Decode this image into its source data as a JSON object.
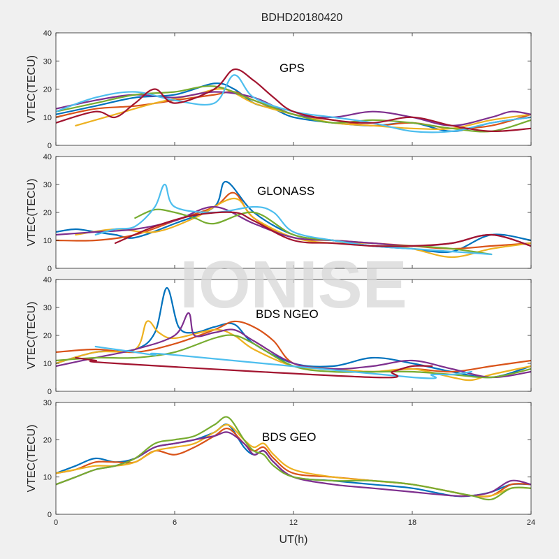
{
  "figure": {
    "title": "BDHD20180420",
    "watermark": "IONISE",
    "xlabel": "UT(h)",
    "xlim": [
      0,
      24
    ],
    "xticks": [
      0,
      6,
      12,
      18,
      24
    ],
    "background": "#f0f0f0"
  },
  "chart_data": [
    {
      "type": "line",
      "title": "GPS",
      "ylabel": "VTEC(TECU)",
      "xlabel": "",
      "ylim": [
        0,
        40
      ],
      "yticks": [
        0,
        10,
        20,
        30,
        40
      ],
      "series": [
        {
          "color": "#0072bd",
          "x": [
            0,
            2,
            4,
            6,
            8,
            9,
            10,
            11,
            12,
            14,
            16,
            18,
            20,
            22,
            24
          ],
          "y": [
            11,
            14,
            17,
            18,
            22,
            20,
            15,
            13,
            10,
            8,
            7,
            8,
            5,
            8,
            10
          ]
        },
        {
          "color": "#d95319",
          "x": [
            0,
            2,
            4,
            6,
            8,
            9,
            10,
            12,
            14,
            16,
            18,
            20,
            22,
            24
          ],
          "y": [
            10,
            13,
            14,
            16,
            18,
            19,
            16,
            11,
            9,
            7,
            8,
            6,
            7,
            11
          ]
        },
        {
          "color": "#edb120",
          "x": [
            1,
            3,
            5,
            7,
            8.5,
            10,
            12,
            14,
            16,
            18,
            20,
            22,
            24
          ],
          "y": [
            7,
            11,
            15,
            18,
            20,
            15,
            11,
            8,
            7,
            6,
            6,
            9,
            11
          ]
        },
        {
          "color": "#7e2f8e",
          "x": [
            0,
            2,
            4,
            6,
            8,
            10,
            12,
            14,
            16,
            18,
            20,
            22,
            23,
            24
          ],
          "y": [
            13,
            16,
            18,
            17,
            19,
            17,
            11,
            10,
            12,
            10,
            7,
            10,
            12,
            11
          ]
        },
        {
          "color": "#77ac30",
          "x": [
            0,
            2,
            4,
            6,
            8,
            10,
            12,
            14,
            16,
            18,
            20,
            22,
            24
          ],
          "y": [
            12,
            15,
            18,
            19,
            21,
            16,
            11,
            8,
            9,
            8,
            6,
            5,
            9
          ]
        },
        {
          "color": "#4dbeee",
          "x": [
            0,
            2,
            4,
            6,
            8,
            9,
            10,
            12,
            14,
            16,
            18,
            20,
            22,
            24
          ],
          "y": [
            12,
            17,
            19,
            16,
            15,
            25,
            17,
            12,
            10,
            8,
            5,
            5,
            8,
            10
          ]
        },
        {
          "color": "#a2142f",
          "x": [
            0,
            2,
            3,
            4,
            5,
            6,
            8,
            9,
            10,
            11,
            12,
            14,
            16,
            18,
            20,
            22,
            24
          ],
          "y": [
            8,
            12,
            10,
            15,
            20,
            15,
            20,
            27,
            23,
            17,
            12,
            9,
            8,
            10,
            7,
            5,
            6
          ]
        }
      ]
    },
    {
      "type": "line",
      "title": "GLONASS",
      "ylabel": "VTEC(TECU)",
      "xlabel": "",
      "ylim": [
        0,
        40
      ],
      "yticks": [
        0,
        10,
        20,
        30,
        40
      ],
      "series": [
        {
          "color": "#0072bd",
          "x": [
            0,
            1,
            2,
            3,
            4,
            6,
            8,
            8.6,
            10,
            12,
            14,
            16,
            18,
            20,
            22,
            24
          ],
          "y": [
            13,
            14,
            13,
            12,
            11,
            16,
            22,
            31,
            20,
            12,
            10,
            8,
            7,
            6,
            12,
            10
          ]
        },
        {
          "color": "#d95319",
          "x": [
            0,
            2,
            4,
            6,
            8,
            9,
            10,
            12,
            14,
            16,
            18,
            20,
            22,
            24
          ],
          "y": [
            10,
            10,
            12,
            17,
            22,
            27,
            18,
            11,
            10,
            9,
            8,
            7,
            8,
            9
          ]
        },
        {
          "color": "#edb120",
          "x": [
            1,
            3,
            5,
            7,
            9,
            10,
            12,
            14,
            16,
            18,
            20,
            22,
            24
          ],
          "y": [
            12,
            14,
            13,
            18,
            25,
            18,
            11,
            9,
            9,
            7,
            4,
            7,
            9
          ]
        },
        {
          "color": "#7e2f8e",
          "x": [
            0,
            2,
            4,
            6,
            8,
            10,
            12,
            14,
            16,
            18,
            20,
            22,
            24
          ],
          "y": [
            12,
            13,
            14,
            17,
            22,
            16,
            11,
            10,
            9,
            8,
            9,
            12,
            8
          ]
        },
        {
          "color": "#77ac30",
          "x": [
            4,
            5,
            6,
            7,
            8,
            10,
            12,
            14,
            16,
            18,
            20,
            22
          ],
          "y": [
            18,
            21,
            20,
            18,
            16,
            20,
            12,
            10,
            8,
            8,
            7,
            5
          ]
        },
        {
          "color": "#4dbeee",
          "x": [
            2,
            3,
            4,
            5,
            5.5,
            6,
            8,
            10,
            11,
            12,
            14,
            16,
            18,
            20,
            22
          ],
          "y": [
            12,
            14,
            15,
            22,
            30,
            22,
            20,
            22,
            20,
            13,
            10,
            8,
            7,
            6,
            5
          ]
        },
        {
          "color": "#a2142f",
          "x": [
            3,
            5,
            7,
            9,
            10,
            12,
            14,
            16,
            18,
            20,
            22,
            24
          ],
          "y": [
            9,
            15,
            19,
            20,
            17,
            10,
            9,
            8,
            8,
            9,
            12,
            8
          ]
        }
      ]
    },
    {
      "type": "line",
      "title": "BDS NGEO",
      "ylabel": "VTEC(TECU)",
      "xlabel": "",
      "ylim": [
        0,
        40
      ],
      "yticks": [
        0,
        10,
        20,
        30,
        40
      ],
      "series": [
        {
          "color": "#0072bd",
          "x": [
            0,
            2,
            4,
            5,
            5.6,
            6.2,
            7,
            8,
            9,
            10,
            12,
            14,
            16,
            18,
            20,
            22,
            24
          ],
          "y": [
            10,
            14,
            15,
            21,
            37,
            23,
            21,
            23,
            24,
            17,
            10,
            9,
            12,
            10,
            7,
            5,
            9
          ]
        },
        {
          "color": "#d95319",
          "x": [
            0,
            2,
            4,
            6,
            8,
            9,
            10,
            11,
            12,
            14,
            16,
            18,
            20,
            22,
            24
          ],
          "y": [
            14,
            15,
            14,
            17,
            22,
            25,
            23,
            18,
            10,
            8,
            7,
            8,
            7,
            9,
            11
          ]
        },
        {
          "color": "#edb120",
          "x": [
            0,
            2,
            4,
            4.6,
            5.2,
            6,
            8,
            9,
            10,
            12,
            14,
            16,
            18,
            20,
            21,
            22,
            24
          ],
          "y": [
            10,
            14,
            15,
            25,
            21,
            19,
            22,
            20,
            15,
            9,
            8,
            7,
            8,
            5,
            4,
            6,
            9
          ]
        },
        {
          "color": "#7e2f8e",
          "x": [
            0,
            2,
            4,
            6,
            6.7,
            7,
            8,
            9,
            10,
            12,
            14,
            16,
            18,
            20,
            22,
            24
          ],
          "y": [
            9,
            12,
            15,
            20,
            28,
            20,
            21,
            22,
            18,
            10,
            8,
            9,
            11,
            8,
            5,
            7
          ]
        },
        {
          "color": "#77ac30",
          "x": [
            0,
            2,
            4,
            6,
            8,
            9,
            10,
            12,
            14,
            16,
            18,
            20,
            22,
            24
          ],
          "y": [
            11,
            12,
            12,
            14,
            19,
            20,
            17,
            9,
            7,
            7,
            7,
            6,
            5,
            8
          ]
        },
        {
          "color": "#4dbeee",
          "x": [
            2,
            3,
            4,
            5,
            6,
            18,
            19,
            20,
            21
          ],
          "y": [
            16,
            15,
            14,
            13,
            13,
            5,
            6,
            6,
            7
          ]
        },
        {
          "color": "#a2142f",
          "x": [
            1,
            2,
            3,
            16,
            17,
            18,
            19
          ],
          "y": [
            12,
            11,
            10,
            5,
            7,
            9,
            9
          ]
        }
      ]
    },
    {
      "type": "line",
      "title": "BDS GEO",
      "ylabel": "VTEC(TECU)",
      "xlabel": "UT(h)",
      "ylim": [
        0,
        30
      ],
      "yticks": [
        0,
        10,
        20,
        30
      ],
      "series": [
        {
          "color": "#0072bd",
          "x": [
            0,
            1,
            2,
            3,
            4,
            5,
            6,
            7,
            8,
            8.7,
            9.5,
            10,
            10.5,
            11,
            12,
            14,
            16,
            18,
            20,
            21,
            22,
            23,
            24
          ],
          "y": [
            11,
            13,
            15,
            14,
            15,
            18,
            19,
            20,
            22,
            24,
            18,
            16,
            17,
            14,
            10,
            9,
            8,
            7,
            5,
            5,
            6,
            8,
            8
          ]
        },
        {
          "color": "#d95319",
          "x": [
            0,
            1,
            2,
            3,
            4,
            5,
            6,
            7,
            8,
            8.7,
            9.5,
            10,
            10.5,
            11,
            12,
            14,
            16,
            18,
            20,
            21,
            22,
            23,
            24
          ],
          "y": [
            11,
            12,
            14,
            14,
            14,
            17,
            16,
            18,
            21,
            23,
            19,
            17,
            18,
            15,
            11,
            10,
            9,
            8,
            6,
            5,
            5,
            8,
            8
          ]
        },
        {
          "color": "#edb120",
          "x": [
            0,
            1,
            2,
            3,
            4,
            5,
            6,
            7,
            8,
            8.7,
            9.5,
            10,
            10.5,
            11,
            12,
            14,
            16,
            18,
            20,
            21,
            22,
            23,
            24
          ],
          "y": [
            11,
            12,
            13,
            13,
            14,
            17,
            18,
            19,
            22,
            24,
            20,
            18,
            19,
            16,
            12,
            10,
            9,
            8,
            6,
            5,
            5,
            7,
            7
          ]
        },
        {
          "color": "#7e2f8e",
          "x": [
            0,
            1,
            2,
            3,
            4,
            5,
            6,
            7,
            8,
            8.7,
            9.5,
            10,
            10.5,
            11,
            12,
            14,
            16,
            18,
            20,
            21,
            22,
            23,
            24
          ],
          "y": [
            8,
            10,
            12,
            13,
            15,
            18,
            19,
            20,
            21,
            22,
            19,
            16,
            17,
            14,
            10,
            8,
            7,
            6,
            5,
            5,
            6,
            9,
            8
          ]
        },
        {
          "color": "#77ac30",
          "x": [
            0,
            1,
            2,
            3,
            4,
            5,
            6,
            7,
            8,
            8.7,
            9.5,
            10,
            10.5,
            11,
            12,
            14,
            16,
            18,
            20,
            21,
            22,
            23,
            24
          ],
          "y": [
            8,
            10,
            12,
            13,
            15,
            19,
            20,
            21,
            24,
            26,
            20,
            17,
            16,
            13,
            10,
            9,
            9,
            8,
            6,
            5,
            4,
            7,
            7
          ]
        }
      ]
    }
  ]
}
